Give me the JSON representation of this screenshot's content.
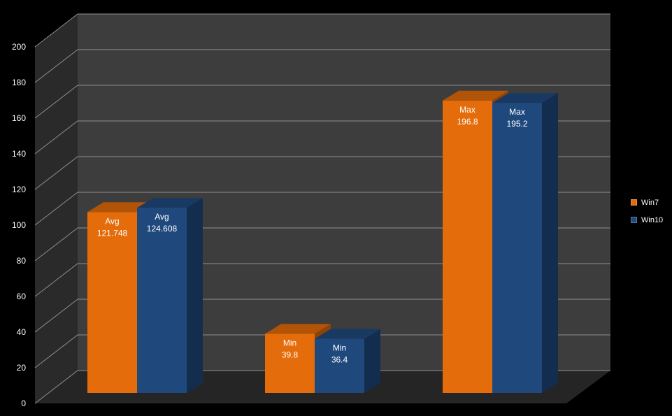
{
  "colors": {
    "background": "#000000",
    "back_wall": "#3d3d3d",
    "side_wall": "#2a2a2a",
    "floor": "#252525",
    "gridline": "#8f8f8f",
    "label_text": "#ffffff"
  },
  "chart_data": {
    "type": "bar",
    "title": "",
    "xlabel": "",
    "ylabel": "",
    "ylim": [
      0,
      200
    ],
    "yticks": [
      0,
      20,
      40,
      60,
      80,
      100,
      120,
      140,
      160,
      180,
      200
    ],
    "ytick_labels": [
      "0",
      "20",
      "40",
      "60",
      "80",
      "100",
      "120",
      "140",
      "160",
      "180",
      "200"
    ],
    "grid": true,
    "style": "3d-clustered-column",
    "legend_position": "right",
    "categories": [
      "Avg",
      "Min",
      "Max"
    ],
    "series": [
      {
        "name": "Win7",
        "color": "#e46c0a",
        "values": [
          121.748,
          39.8,
          196.8
        ],
        "labels": [
          [
            "Avg",
            "121.748"
          ],
          [
            "Min",
            "39.8"
          ],
          [
            "Max",
            "196.8"
          ]
        ]
      },
      {
        "name": "Win10",
        "color": "#1f497d",
        "values": [
          124.608,
          36.4,
          195.2
        ],
        "labels": [
          [
            "Avg",
            "124.608"
          ],
          [
            "Min",
            "36.4"
          ],
          [
            "Max",
            "195.2"
          ]
        ]
      }
    ]
  }
}
